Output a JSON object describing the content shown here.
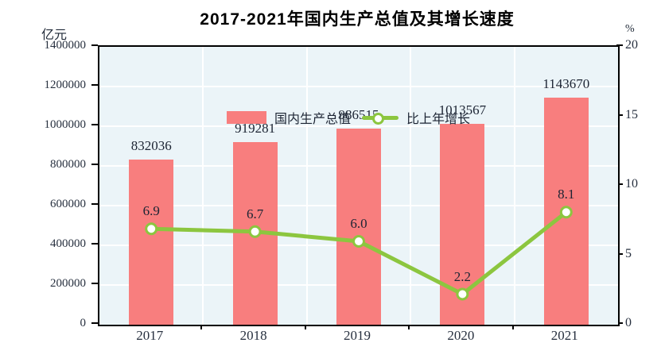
{
  "title": "2017-2021年国内生产总值及其增长速度",
  "left_axis_unit": "亿元",
  "right_axis_unit": "%",
  "legend": {
    "bar_label": "国内生产总值",
    "line_label": "比上年增长"
  },
  "colors": {
    "bar": "#f87e7e",
    "line": "#8cc63f",
    "marker_fill": "#ffffff",
    "plot_bg": "#ebf4f8",
    "grid": "#ffffff",
    "plot_border": "#000000",
    "text": "#1c2433"
  },
  "chart_data": {
    "type": "bar",
    "subtype": "bar+line combo",
    "title": "2017-2021年国内生产总值及其增长速度",
    "categories": [
      "2017",
      "2018",
      "2019",
      "2020",
      "2021"
    ],
    "series": [
      {
        "name": "国内生产总值",
        "type": "bar",
        "axis": "left",
        "unit": "亿元",
        "values": [
          832036,
          919281,
          986515,
          1013567,
          1143670
        ]
      },
      {
        "name": "比上年增长",
        "type": "line",
        "axis": "right",
        "unit": "%",
        "values": [
          6.9,
          6.7,
          6.0,
          2.2,
          8.1
        ]
      }
    ],
    "left_axis": {
      "label": "亿元",
      "min": 0,
      "max": 1400000,
      "step": 200000,
      "ticks": [
        0,
        200000,
        400000,
        600000,
        800000,
        1000000,
        1200000,
        1400000
      ]
    },
    "right_axis": {
      "label": "%",
      "min": 0,
      "max": 20,
      "step": 5,
      "ticks": [
        0,
        5,
        10,
        15,
        20
      ]
    },
    "grid": true,
    "legend_position": "top-left inside plot"
  }
}
